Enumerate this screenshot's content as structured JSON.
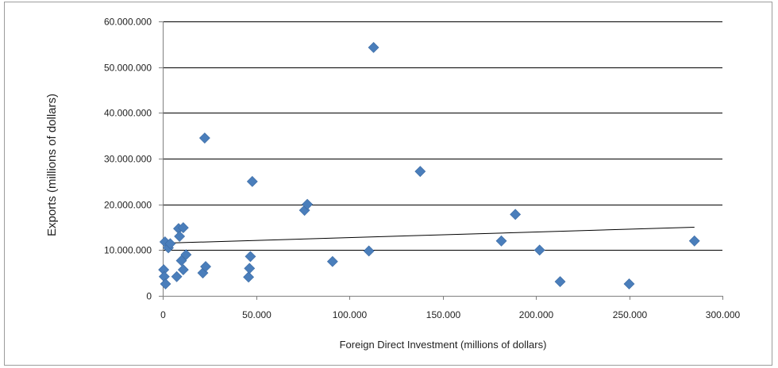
{
  "chart_data": {
    "type": "scatter",
    "title": "",
    "xlabel": "Foreign Direct Investment (millions of dollars)",
    "ylabel": "Exports (millions of dollars)",
    "xlim": [
      0,
      300000
    ],
    "ylim": [
      0,
      60000000
    ],
    "x_ticks": [
      0,
      50000,
      100000,
      150000,
      200000,
      250000,
      300000
    ],
    "x_tick_labels": [
      "0",
      "50.000",
      "100.000",
      "150.000",
      "200.000",
      "250.000",
      "300.000"
    ],
    "y_ticks": [
      0,
      10000000,
      20000000,
      30000000,
      40000000,
      50000000,
      60000000
    ],
    "y_tick_labels": [
      "0",
      "10.000.000",
      "20.000.000",
      "30.000.000",
      "40.000.000",
      "50.000.000",
      "60.000.000"
    ],
    "grid": "horizontal",
    "legend": "none",
    "marker": "diamond",
    "marker_color": "#4a7ebb",
    "trendline": {
      "type": "linear",
      "color": "#000000",
      "x": [
        0,
        285000
      ],
      "y": [
        11500000,
        15000000
      ]
    },
    "points": [
      {
        "x": 500,
        "y": 5700000
      },
      {
        "x": 800,
        "y": 4200000
      },
      {
        "x": 1500,
        "y": 2600000
      },
      {
        "x": 1200,
        "y": 11800000
      },
      {
        "x": 3000,
        "y": 10500000
      },
      {
        "x": 4000,
        "y": 11400000
      },
      {
        "x": 7500,
        "y": 4200000
      },
      {
        "x": 8500,
        "y": 14700000
      },
      {
        "x": 9000,
        "y": 13000000
      },
      {
        "x": 10000,
        "y": 7700000
      },
      {
        "x": 11000,
        "y": 14900000
      },
      {
        "x": 11000,
        "y": 5700000
      },
      {
        "x": 12500,
        "y": 9000000
      },
      {
        "x": 21500,
        "y": 5000000
      },
      {
        "x": 22500,
        "y": 34500000
      },
      {
        "x": 23000,
        "y": 6400000
      },
      {
        "x": 46000,
        "y": 4100000
      },
      {
        "x": 46500,
        "y": 6000000
      },
      {
        "x": 47000,
        "y": 8600000
      },
      {
        "x": 48000,
        "y": 25000000
      },
      {
        "x": 76000,
        "y": 18700000
      },
      {
        "x": 77500,
        "y": 20000000
      },
      {
        "x": 91000,
        "y": 7500000
      },
      {
        "x": 110500,
        "y": 9800000
      },
      {
        "x": 113000,
        "y": 54300000
      },
      {
        "x": 138000,
        "y": 27200000
      },
      {
        "x": 181500,
        "y": 12000000
      },
      {
        "x": 189000,
        "y": 17800000
      },
      {
        "x": 202000,
        "y": 10000000
      },
      {
        "x": 213000,
        "y": 3100000
      },
      {
        "x": 250000,
        "y": 2600000
      },
      {
        "x": 285000,
        "y": 12000000
      }
    ]
  }
}
